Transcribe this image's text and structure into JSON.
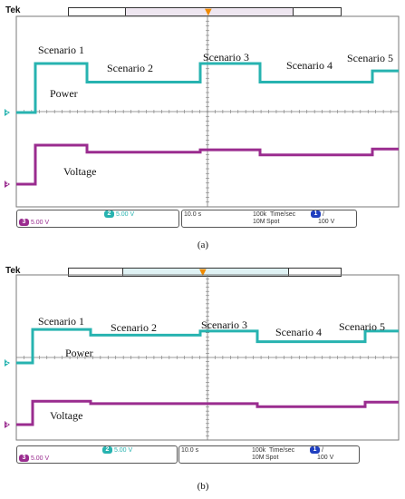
{
  "brand": "Tek",
  "panels": [
    {
      "scenarios": [
        "Scenario 1",
        "Scenario 2",
        "Scenario 3",
        "Scenario 4",
        "Scenario 5"
      ],
      "power_label": "Power",
      "voltage_label": "Voltage",
      "ch2_marker": "2",
      "ch3_marker": "3",
      "ch3_scale": "5.00 V",
      "ch2_scale": "5.00 V",
      "time_div": "10.0 s",
      "sample_rate": "100k",
      "time_unit": "Time/sec",
      "record_length": "10M",
      "spot": "Spot",
      "trig_channel": "1",
      "trig_slope": "/",
      "trig_level": "100 V",
      "caption": "(a)"
    },
    {
      "scenarios": [
        "Scenario 1",
        "Scenario 2",
        "Scenario 3",
        "Scenario 4",
        "Scenario 5"
      ],
      "power_label": "Power",
      "voltage_label": "Voltage",
      "ch2_marker": "2",
      "ch3_marker": "3",
      "ch3_scale": "5.00 V",
      "ch2_scale": "5.00 V",
      "time_div": "10.0 s",
      "sample_rate": "100k",
      "time_unit": "Time/sec",
      "record_length": "10M",
      "spot": "Spot",
      "trig_channel": "1",
      "trig_slope": "/",
      "trig_level": "100 V",
      "caption": "(b)"
    }
  ],
  "colors": {
    "power": "#27b3b0",
    "voltage": "#9a2c8f",
    "grid": "#7a7a7a",
    "trigger": "#f08a00"
  },
  "trace_data": [
    {
      "power_levels": {
        "baseline": 0,
        "scenario_1": 1.0,
        "scenario_2": 0.62,
        "scenario_3": 1.0,
        "scenario_4": 0.62,
        "scenario_5": 0.85
      },
      "voltage_levels": {
        "baseline": 0,
        "scenario_1": 1.0,
        "scenario_2": 0.82,
        "scenario_3": 0.88,
        "scenario_4": 0.75,
        "scenario_5": 0.9
      }
    },
    {
      "power_levels": {
        "baseline": 0,
        "scenario_1": 0.82,
        "scenario_2": 0.68,
        "scenario_3": 0.78,
        "scenario_4": 0.52,
        "scenario_5": 0.78
      },
      "voltage_levels": {
        "baseline": 0,
        "scenario_1": 0.78,
        "scenario_2": 0.7,
        "scenario_3": 0.7,
        "scenario_4": 0.6,
        "scenario_5": 0.75
      }
    }
  ]
}
